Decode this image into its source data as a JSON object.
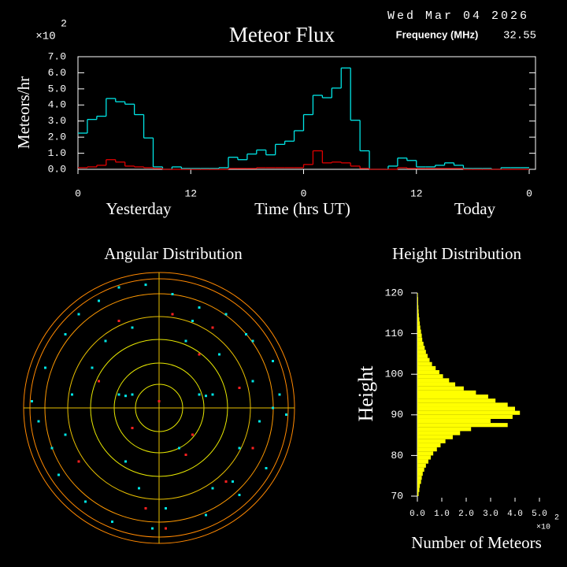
{
  "header": {
    "date": "Wed Mar 04 2026",
    "frequency_label": "Frequency (MHz)",
    "frequency_value": 32.55
  },
  "chart_data": [
    {
      "type": "line",
      "title": "Meteor Flux",
      "ylabel": "Meteors/hr",
      "xlabel": "Time (hrs UT)",
      "y_multiplier": "×10",
      "y_multiplier_exponent": "2",
      "x_annotations": [
        "Yesterday",
        "Today"
      ],
      "x": [
        0,
        1,
        2,
        3,
        4,
        5,
        6,
        7,
        8,
        9,
        10,
        11,
        12,
        13,
        14,
        15,
        16,
        17,
        18,
        19,
        20,
        21,
        22,
        23,
        24,
        25,
        26,
        27,
        28,
        29,
        30,
        31,
        32,
        33,
        34,
        35,
        36,
        37,
        38,
        39,
        40,
        41,
        42,
        43,
        44,
        45,
        46,
        47
      ],
      "xlim": [
        0,
        48
      ],
      "xticks": [
        0,
        12,
        {
          "value": 24,
          "label": "0"
        },
        {
          "value": 36,
          "label": "12"
        },
        {
          "value": 48,
          "label": "0"
        }
      ],
      "ylim": [
        0,
        7
      ],
      "yticks": [
        {
          "value": 0,
          "label": "0.0"
        },
        {
          "value": 1,
          "label": "1.0"
        },
        {
          "value": 2,
          "label": "2.0"
        },
        {
          "value": 3,
          "label": "3.0"
        },
        {
          "value": 4,
          "label": "4.0"
        },
        {
          "value": 5,
          "label": "5.0"
        },
        {
          "value": 6,
          "label": "6.0"
        },
        {
          "value": 7,
          "label": "7.0"
        }
      ],
      "series": [
        {
          "color": "#00e5e5",
          "values": [
            2.25,
            3.1,
            3.3,
            4.4,
            4.2,
            4.05,
            3.4,
            1.95,
            0.15,
            0,
            0.15,
            0.05,
            0.05,
            0.05,
            0.05,
            0.1,
            0.75,
            0.6,
            0.95,
            1.2,
            0.9,
            1.55,
            1.75,
            2.4,
            3.4,
            4.6,
            4.45,
            5.05,
            6.3,
            3.05,
            1.15,
            0,
            0,
            0.2,
            0.7,
            0.55,
            0.15,
            0.15,
            0.25,
            0.4,
            0.25,
            0.05,
            0.05,
            0.05,
            0,
            0.1,
            0.1,
            0.1
          ]
        },
        {
          "color": "#e00000",
          "values": [
            0.1,
            0.15,
            0.25,
            0.6,
            0.45,
            0.2,
            0.15,
            0.1,
            0.05,
            0,
            0,
            0,
            0,
            0,
            0,
            0,
            0.05,
            0.05,
            0.05,
            0.1,
            0.1,
            0.1,
            0.1,
            0.1,
            0.3,
            1.15,
            0.4,
            0.45,
            0.4,
            0.2,
            0.05,
            0,
            0,
            0,
            0.1,
            0.05,
            0.05,
            0.05,
            0.05,
            0.05,
            0.05,
            0,
            0,
            0,
            0,
            0,
            0,
            0
          ]
        }
      ]
    },
    {
      "type": "scatter",
      "title": "Angular Distribution",
      "xlim": [
        -1,
        1
      ],
      "ylim": [
        -1,
        1
      ],
      "series": [
        {
          "color": "#00e5e5",
          "x": [
            -0.85,
            -0.7,
            -0.6,
            -0.45,
            -0.3,
            -0.1,
            0.1,
            0.3,
            0.5,
            0.7,
            0.85,
            -0.9,
            -0.75,
            -0.55,
            0.6,
            0.8,
            0.9,
            -0.5,
            -0.2,
            0.2,
            0.45,
            -0.8,
            -0.65,
            0.7,
            0.75,
            -0.35,
            0.35,
            -0.05,
            0.05,
            0.55,
            -0.6,
            0.65,
            -0.4,
            0.4,
            -0.25,
            0.15,
            -0.15,
            0.25,
            0.95,
            -0.95,
            -0.3,
            -0.25,
            -0.2,
            0.3,
            0.35,
            0.4,
            0.85,
            -0.7,
            0.6,
            -0.45
          ],
          "values": [
            0.3,
            0.55,
            0.7,
            0.8,
            0.9,
            0.92,
            0.85,
            0.75,
            0.7,
            0.5,
            0.35,
            -0.1,
            -0.5,
            -0.7,
            -0.65,
            -0.45,
            0.1,
            0.3,
            0.6,
            0.5,
            0.4,
            -0.3,
            0.1,
            0.2,
            -0.1,
            -0.85,
            -0.8,
            -0.9,
            -0.75,
            -0.55,
            -0.4,
            0.55,
            0.5,
            -0.6,
            -0.4,
            -0.3,
            -0.6,
            0.65,
            -0.05,
            0.05,
            0.1,
            0.09,
            0.1,
            0.1,
            0.09,
            0.1,
            0.0,
            -0.2,
            -0.3,
            0.2
          ]
        },
        {
          "color": "#ff2020",
          "x": [
            -0.3,
            0.1,
            0.4,
            -0.6,
            0.5,
            0.2,
            -0.1,
            0.05,
            0.3,
            -0.45,
            0.6,
            0.0,
            -0.2,
            0.25,
            0.7
          ],
          "values": [
            0.65,
            0.7,
            0.6,
            -0.4,
            -0.55,
            -0.35,
            -0.75,
            -0.9,
            0.4,
            0.2,
            0.15,
            0.05,
            -0.15,
            -0.2,
            -0.3
          ]
        }
      ]
    },
    {
      "type": "histogram",
      "orientation": "horizontal",
      "title": "Height Distribution",
      "ylabel": "Height",
      "xlabel": "Number of Meteors",
      "x_multiplier": "×10",
      "x_multiplier_exponent": "2",
      "color": "#ffff00",
      "bins": [
        70,
        71,
        72,
        73,
        74,
        75,
        76,
        77,
        78,
        79,
        80,
        81,
        82,
        83,
        84,
        85,
        86,
        87,
        88,
        89,
        90,
        91,
        92,
        93,
        94,
        95,
        96,
        97,
        98,
        99,
        100,
        101,
        102,
        103,
        104,
        105,
        106,
        107,
        108,
        109,
        110,
        111,
        112,
        113,
        114,
        115,
        116,
        117,
        118,
        119,
        120
      ],
      "values": [
        0.05,
        0.08,
        0.1,
        0.15,
        0.18,
        0.22,
        0.28,
        0.35,
        0.45,
        0.55,
        0.65,
        0.8,
        0.95,
        1.15,
        1.45,
        1.75,
        2.2,
        3.7,
        3.0,
        3.9,
        4.2,
        4.0,
        3.7,
        3.2,
        2.9,
        2.4,
        1.9,
        1.55,
        1.3,
        1.05,
        0.9,
        0.75,
        0.6,
        0.5,
        0.42,
        0.35,
        0.3,
        0.25,
        0.2,
        0.18,
        0.15,
        0.12,
        0.1,
        0.08,
        0.06,
        0.05,
        0.04,
        0.03,
        0.03,
        0.02
      ],
      "xlim": [
        0,
        5
      ],
      "xticks": [
        {
          "value": 0,
          "label": "0.0"
        },
        {
          "value": 1,
          "label": "1.0"
        },
        {
          "value": 2,
          "label": "2.0"
        },
        {
          "value": 3,
          "label": "3.0"
        },
        {
          "value": 4,
          "label": "4.0"
        },
        {
          "value": 5,
          "label": "5.0"
        }
      ],
      "ylim": [
        70,
        120
      ],
      "yticks": [
        70,
        80,
        90,
        100,
        110,
        120
      ]
    }
  ]
}
